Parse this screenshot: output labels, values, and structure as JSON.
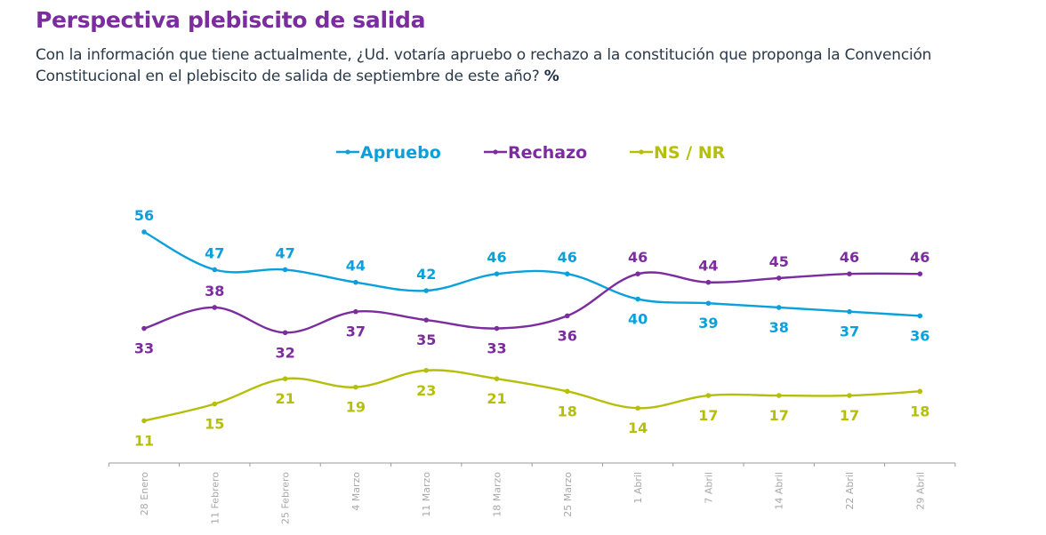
{
  "header": {
    "title": "Perspectiva plebiscito de salida",
    "subtitle_text": "Con la información que tiene actualmente, ¿Ud. votaría apruebo o rechazo a la constitución que proponga la Convención Constitucional en el plebiscito de salida de septiembre de este año?",
    "subtitle_unit": "%"
  },
  "chart_data": {
    "type": "line",
    "title": "Perspectiva plebiscito de salida",
    "xlabel": "",
    "ylabel": "%",
    "x": [
      "28 Enero",
      "11 Febrero",
      "25 Febrero",
      "4 Marzo",
      "11 Marzo",
      "18 Marzo",
      "25 Marzo",
      "1 Abril",
      "7 Abril",
      "14 Abril",
      "22 Abril",
      "29 Abril"
    ],
    "series": [
      {
        "name": "Apruebo",
        "color": "#0aa0dc",
        "values": [
          56,
          47,
          47,
          44,
          42,
          46,
          46,
          40,
          39,
          38,
          37,
          36
        ]
      },
      {
        "name": "Rechazo",
        "color": "#7b2c9e",
        "values": [
          33,
          38,
          32,
          37,
          35,
          33,
          36,
          46,
          44,
          45,
          46,
          46
        ]
      },
      {
        "name": "NS / NR",
        "color": "#b5bf0a",
        "values": [
          11,
          15,
          21,
          19,
          23,
          21,
          18,
          14,
          17,
          17,
          17,
          18
        ]
      }
    ],
    "legend_position": "top-center",
    "grid": false,
    "y_axis_visible": false,
    "data_labels": true
  }
}
